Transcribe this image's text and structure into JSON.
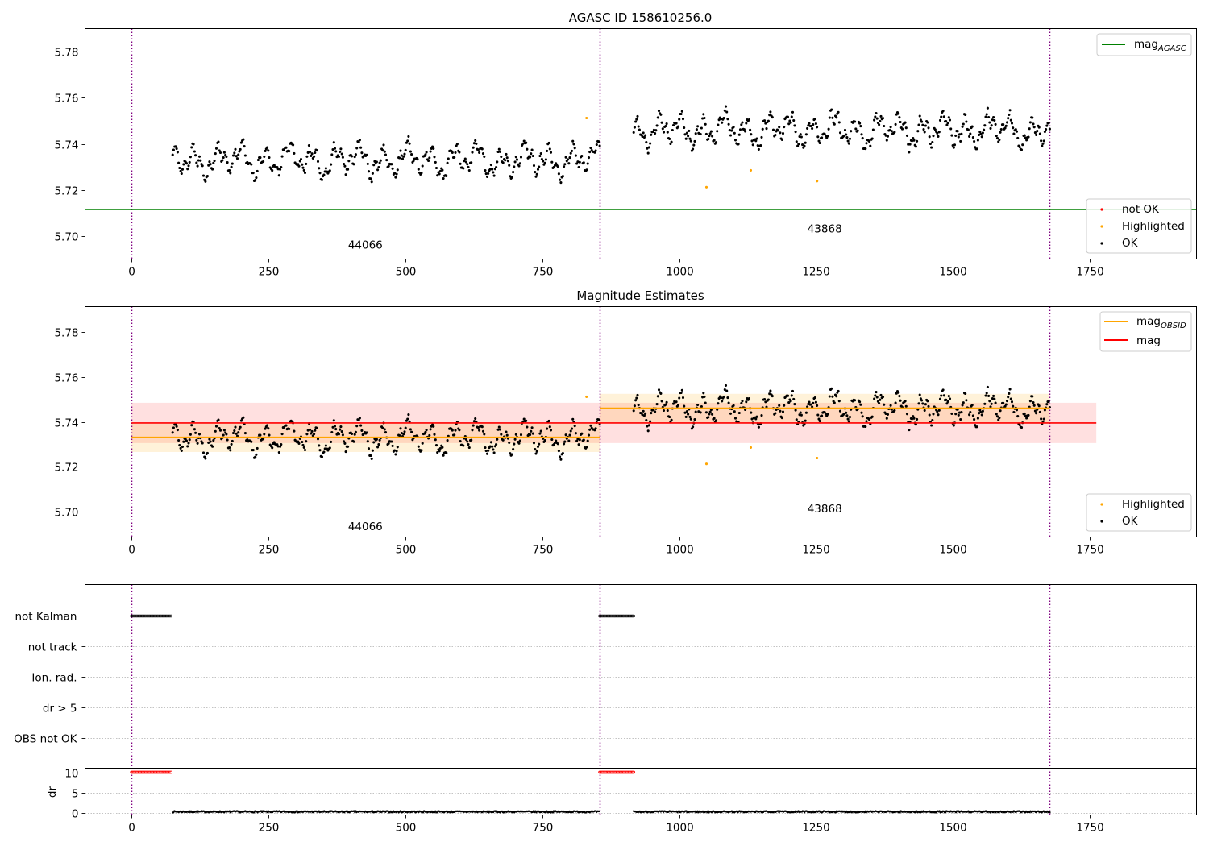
{
  "figure": {
    "colors": {
      "ok": "#000000",
      "highlighted": "#ffa500",
      "not_ok": "#ff0000",
      "mag_agasc": "#008000",
      "mag_obsid": "#ffa500",
      "mag": "#ff0000",
      "obsid_boundary": "#800080",
      "grid": "#b0b0b0"
    }
  },
  "chart_data": [
    {
      "id": "top",
      "type": "scatter",
      "title": "AGASC ID 158610256.0",
      "xlim": [
        -85,
        1945
      ],
      "ylim": [
        5.69,
        5.79
      ],
      "xticks": [
        0,
        250,
        500,
        750,
        1000,
        1250,
        1500,
        1750
      ],
      "yticks": [
        5.7,
        5.72,
        5.74,
        5.76,
        5.78
      ],
      "ytick_decimals": 2,
      "mag_agasc": 5.7115,
      "obsid_boundaries": [
        0,
        855,
        1677
      ],
      "obsid_labels": [
        {
          "text": "44066",
          "x": 427,
          "y": 5.6945
        },
        {
          "text": "43868",
          "x": 1266,
          "y": 5.7015
        }
      ],
      "segments": [
        {
          "x_start": 75,
          "x_end": 855,
          "count": 430,
          "mean": 5.733,
          "amplitude": 0.0085,
          "seed": 11
        },
        {
          "x_start": 917,
          "x_end": 1677,
          "count": 430,
          "mean": 5.746,
          "amplitude": 0.0085,
          "seed": 29
        }
      ],
      "highlighted_points": [
        {
          "x": 831,
          "y": 5.7512
        },
        {
          "x": 1050,
          "y": 5.7212
        },
        {
          "x": 1131,
          "y": 5.7285
        },
        {
          "x": 1252,
          "y": 5.7238
        }
      ],
      "legend_upper": [
        {
          "label": "mag",
          "subscript": "AGASC",
          "kind": "line",
          "color_key": "mag_agasc"
        }
      ],
      "legend_lower": [
        {
          "label": "not OK",
          "kind": "dot",
          "color_key": "not_ok"
        },
        {
          "label": "Highlighted",
          "kind": "dot",
          "color_key": "highlighted"
        },
        {
          "label": "OK",
          "kind": "dot",
          "color_key": "ok"
        }
      ]
    },
    {
      "id": "middle",
      "type": "scatter",
      "title": "Magnitude Estimates",
      "xlim": [
        -85,
        1945
      ],
      "ylim": [
        5.6885,
        5.7915
      ],
      "xticks": [
        0,
        250,
        500,
        750,
        1000,
        1250,
        1500,
        1750
      ],
      "yticks": [
        5.7,
        5.72,
        5.74,
        5.76,
        5.78
      ],
      "ytick_decimals": 2,
      "obsid_boundaries": [
        0,
        855,
        1677
      ],
      "obsid_labels": [
        {
          "text": "44066",
          "x": 427,
          "y": 5.6915
        },
        {
          "text": "43868",
          "x": 1266,
          "y": 5.6995
        }
      ],
      "segments": [
        {
          "x_start": 75,
          "x_end": 855,
          "count": 430,
          "mean": 5.733,
          "amplitude": 0.0085,
          "seed": 11
        },
        {
          "x_start": 917,
          "x_end": 1677,
          "count": 430,
          "mean": 5.746,
          "amplitude": 0.0085,
          "seed": 29
        }
      ],
      "highlighted_points": [
        {
          "x": 831,
          "y": 5.7512
        },
        {
          "x": 1050,
          "y": 5.7212
        },
        {
          "x": 1131,
          "y": 5.7285
        },
        {
          "x": 1252,
          "y": 5.7238
        }
      ],
      "mag": {
        "value": 5.7395,
        "band_low": 5.7305,
        "band_high": 5.7485,
        "x_start": 0,
        "x_end": 1762
      },
      "mag_obsid": [
        {
          "x_start": 0,
          "x_end": 855,
          "value": 5.733,
          "band_low": 5.7265,
          "band_high": 5.7395
        },
        {
          "x_start": 855,
          "x_end": 1677,
          "value": 5.746,
          "band_low": 5.7395,
          "band_high": 5.7525
        }
      ],
      "legend_upper": [
        {
          "label": "mag",
          "subscript": "OBSID",
          "kind": "line",
          "color_key": "mag_obsid"
        },
        {
          "label": "mag",
          "subscript": "",
          "kind": "line",
          "color_key": "mag"
        }
      ],
      "legend_lower": [
        {
          "label": "Highlighted",
          "kind": "dot",
          "color_key": "highlighted"
        },
        {
          "label": "OK",
          "kind": "dot",
          "color_key": "ok"
        }
      ]
    },
    {
      "id": "flags",
      "type": "scatter",
      "xlim": [
        -85,
        1945
      ],
      "flag_rows": [
        "not Kalman",
        "not track",
        "Ion. rad.",
        "dr > 5",
        "OBS not OK"
      ],
      "not_kalman_ranges": [
        [
          0,
          73
        ],
        [
          855,
          917
        ]
      ],
      "obsid_boundaries": [
        0,
        855,
        1677
      ]
    },
    {
      "id": "dr",
      "type": "scatter",
      "xlim": [
        -85,
        1945
      ],
      "xticks": [
        0,
        250,
        500,
        750,
        1000,
        1250,
        1500,
        1750
      ],
      "ylim": [
        -0.5,
        11
      ],
      "yticks": [
        0,
        5,
        10
      ],
      "ylabel": "dr",
      "clipped_ranges": [
        [
          0,
          73
        ],
        [
          855,
          917
        ]
      ],
      "clipped_value": 10,
      "dr_ranges": [
        [
          75,
          855
        ],
        [
          917,
          1677
        ]
      ],
      "dr_typical": 0.3,
      "obsid_boundaries": [
        0,
        855,
        1677
      ]
    }
  ]
}
